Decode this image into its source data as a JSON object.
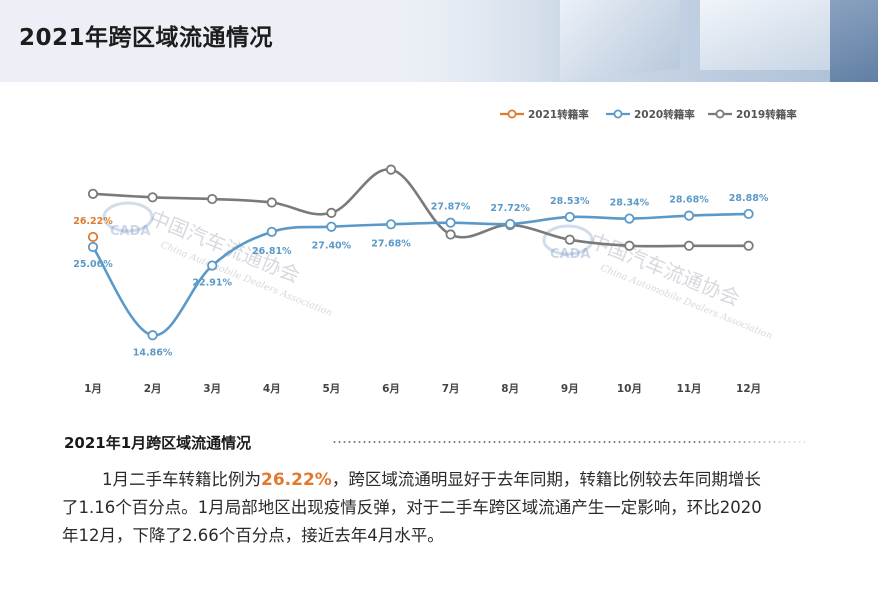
{
  "header": {
    "title": "2021年跨区域流通情况"
  },
  "chart_data": {
    "type": "line",
    "categories": [
      "1月",
      "2月",
      "3月",
      "4月",
      "5月",
      "6月",
      "7月",
      "8月",
      "9月",
      "10月",
      "11月",
      "12月"
    ],
    "series": [
      {
        "name": "2021转籍率",
        "color": "#e07b2e",
        "values": [
          26.22,
          null,
          null,
          null,
          null,
          null,
          null,
          null,
          null,
          null,
          null,
          null
        ],
        "labels": [
          "26.22%"
        ]
      },
      {
        "name": "2020转籍率",
        "color": "#5b9ac8",
        "values": [
          25.06,
          14.86,
          22.91,
          26.81,
          27.4,
          27.68,
          27.87,
          27.72,
          28.53,
          28.34,
          28.68,
          28.88
        ],
        "labels": [
          "25.06%",
          "14.86%",
          "22.91%",
          "26.81%",
          "27.40%",
          "27.68%",
          "27.87%",
          "27.72%",
          "28.53%",
          "28.34%",
          "28.68%",
          "28.88%"
        ]
      },
      {
        "name": "2019转籍率",
        "color": "#7a7a7a",
        "values": [
          31.2,
          30.8,
          30.6,
          30.2,
          29.0,
          34.0,
          26.5,
          27.6,
          25.9,
          25.2,
          25.2,
          25.2
        ]
      }
    ],
    "ylim": [
      12,
      38
    ],
    "legend": "top-right",
    "grid": false
  },
  "section": {
    "title": "2021年1月跨区域流通情况"
  },
  "paragraph": {
    "line1_a": "1月二手车转籍比例为",
    "line1_highlight": "26.22%",
    "line1_b": "，跨区域流通明显好于去年同期，转籍比例较去年同期增长",
    "line2": "了1.16个百分点。1月局部地区出现疫情反弹，对于二手车跨区域流通产生一定影响，环比2020",
    "line3": "年12月，下降了2.66个百分点，接近去年4月水平。"
  },
  "watermark": {
    "cn": "中国汽车流通协会",
    "en": "China Automobile Dealers Association",
    "logo": "CADA"
  },
  "colors": {
    "accent": "#e07b2e",
    "series2020": "#5b9ac8",
    "series2019": "#7a7a7a"
  }
}
